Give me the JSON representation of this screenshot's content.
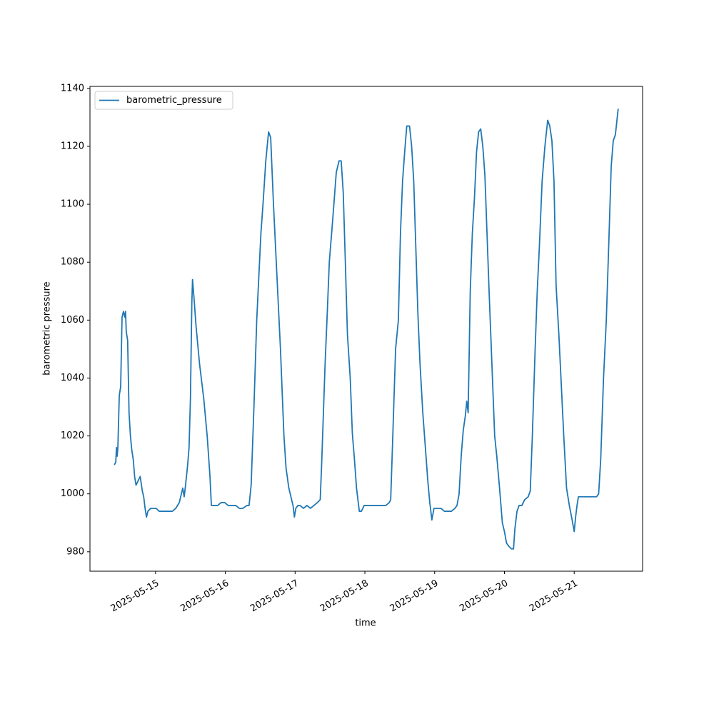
{
  "chart_data": {
    "type": "line",
    "xlabel": "time",
    "ylabel": "barometric pressure",
    "legend": "upper left",
    "grid": false,
    "xlim": [
      -0.94,
      6.98
    ],
    "ylim": [
      973.3,
      1140.7
    ],
    "xticks": [
      {
        "value": 0,
        "label": "2025-05-15"
      },
      {
        "value": 1,
        "label": "2025-05-16"
      },
      {
        "value": 2,
        "label": "2025-05-17"
      },
      {
        "value": 3,
        "label": "2025-05-18"
      },
      {
        "value": 4,
        "label": "2025-05-19"
      },
      {
        "value": 5,
        "label": "2025-05-20"
      },
      {
        "value": 6,
        "label": "2025-05-21"
      }
    ],
    "yticks": [
      980,
      1000,
      1020,
      1040,
      1060,
      1080,
      1100,
      1120,
      1140
    ],
    "x": [
      -0.59,
      -0.57,
      -0.56,
      -0.55,
      -0.54,
      -0.52,
      -0.5,
      -0.48,
      -0.46,
      -0.44,
      -0.43,
      -0.42,
      -0.4,
      -0.38,
      -0.36,
      -0.34,
      -0.32,
      -0.3,
      -0.28,
      -0.26,
      -0.24,
      -0.22,
      -0.19,
      -0.17,
      -0.15,
      -0.13,
      -0.11,
      -0.07,
      -0.03,
      0.01,
      0.05,
      0.1,
      0.15,
      0.19,
      0.24,
      0.29,
      0.34,
      0.37,
      0.39,
      0.41,
      0.43,
      0.46,
      0.48,
      0.5,
      0.52,
      0.53,
      0.55,
      0.58,
      0.63,
      0.69,
      0.74,
      0.78,
      0.8,
      0.82,
      0.84,
      0.89,
      0.94,
      0.99,
      1.04,
      1.1,
      1.15,
      1.2,
      1.25,
      1.31,
      1.34,
      1.37,
      1.41,
      1.45,
      1.51,
      1.54,
      1.58,
      1.62,
      1.65,
      1.69,
      1.74,
      1.79,
      1.84,
      1.87,
      1.91,
      1.95,
      1.97,
      1.99,
      2.01,
      2.04,
      2.07,
      2.12,
      2.17,
      2.22,
      2.27,
      2.32,
      2.36,
      2.38,
      2.43,
      2.46,
      2.49,
      2.54,
      2.59,
      2.63,
      2.66,
      2.69,
      2.72,
      2.75,
      2.79,
      2.82,
      2.85,
      2.88,
      2.92,
      2.95,
      2.99,
      3.04,
      3.09,
      3.14,
      3.19,
      3.25,
      3.3,
      3.35,
      3.37,
      3.4,
      3.44,
      3.48,
      3.51,
      3.54,
      3.57,
      3.6,
      3.64,
      3.67,
      3.7,
      3.73,
      3.76,
      3.79,
      3.83,
      3.87,
      3.9,
      3.93,
      3.96,
      3.99,
      4.03,
      4.09,
      4.14,
      4.19,
      4.24,
      4.29,
      4.32,
      4.35,
      4.38,
      4.41,
      4.44,
      4.46,
      4.48,
      4.51,
      4.54,
      4.57,
      4.6,
      4.63,
      4.66,
      4.69,
      4.72,
      4.75,
      4.78,
      4.82,
      4.86,
      4.89,
      4.93,
      4.97,
      5.0,
      5.03,
      5.06,
      5.1,
      5.13,
      5.15,
      5.18,
      5.21,
      5.25,
      5.29,
      5.34,
      5.37,
      5.4,
      5.44,
      5.47,
      5.5,
      5.54,
      5.58,
      5.62,
      5.65,
      5.68,
      5.71,
      5.74,
      5.78,
      5.81,
      5.85,
      5.89,
      5.93,
      5.97,
      6.0,
      6.02,
      6.04,
      6.06,
      6.11,
      6.16,
      6.22,
      6.27,
      6.32,
      6.35,
      6.38,
      6.42,
      6.46,
      6.5,
      6.53,
      6.56,
      6.59,
      6.63
    ],
    "series": [
      {
        "name": "barometric_pressure",
        "color": "#1f77b4",
        "values": [
          1010,
          1011,
          1016,
          1013,
          1016,
          1034,
          1037,
          1061,
          1063,
          1061,
          1063,
          1056,
          1053,
          1028,
          1020,
          1015,
          1012,
          1006,
          1003,
          1004,
          1005,
          1006,
          1001,
          999,
          995,
          992,
          994,
          995,
          995,
          995,
          994,
          994,
          994,
          994,
          994,
          995,
          997,
          1000,
          1002,
          999,
          1003,
          1010,
          1016,
          1033,
          1066,
          1074,
          1068,
          1058,
          1045,
          1033,
          1020,
          1006,
          996,
          996,
          996,
          996,
          997,
          997,
          996,
          996,
          996,
          995,
          995,
          996,
          996,
          1003,
          1030,
          1060,
          1090,
          1100,
          1115,
          1125,
          1123,
          1100,
          1075,
          1050,
          1020,
          1009,
          1002,
          998,
          996,
          992,
          995,
          996,
          996,
          995,
          996,
          995,
          996,
          997,
          998,
          1010,
          1045,
          1062,
          1080,
          1095,
          1111,
          1115,
          1115,
          1104,
          1080,
          1055,
          1040,
          1021,
          1012,
          1002,
          994,
          994,
          996,
          996,
          996,
          996,
          996,
          996,
          996,
          997,
          998,
          1020,
          1050,
          1060,
          1090,
          1108,
          1118,
          1127,
          1127,
          1120,
          1108,
          1085,
          1062,
          1045,
          1028,
          1015,
          1005,
          997,
          991,
          995,
          995,
          995,
          994,
          994,
          994,
          995,
          996,
          1000,
          1013,
          1022,
          1027,
          1032,
          1028,
          1070,
          1090,
          1102,
          1118,
          1125,
          1126,
          1120,
          1110,
          1090,
          1070,
          1045,
          1020,
          1013,
          1002,
          990,
          987,
          983,
          982,
          981,
          981,
          988,
          994,
          996,
          996,
          998,
          999,
          1001,
          1020,
          1050,
          1070,
          1085,
          1108,
          1120,
          1129,
          1127,
          1122,
          1108,
          1072,
          1055,
          1040,
          1020,
          1002,
          996,
          991,
          987,
          992,
          996,
          999,
          999,
          999,
          999,
          999,
          999,
          1000,
          1012,
          1040,
          1060,
          1090,
          1113,
          1122,
          1124,
          1133
        ]
      }
    ]
  }
}
